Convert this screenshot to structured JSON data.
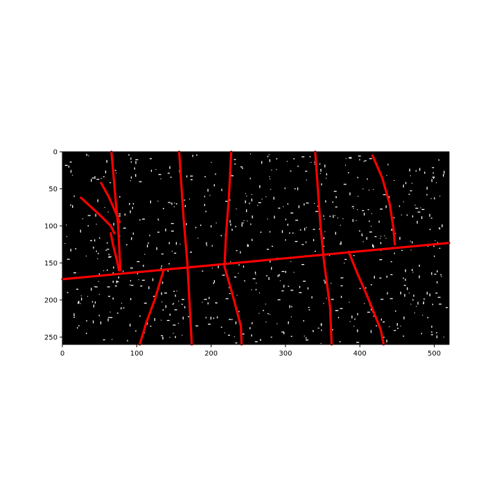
{
  "chart_data": {
    "type": "image",
    "title": "",
    "xlabel": "",
    "ylabel": "",
    "xlim": [
      0,
      520
    ],
    "ylim": [
      260,
      0
    ],
    "x_ticks": [
      0,
      100,
      200,
      300,
      400,
      500
    ],
    "y_ticks": [
      0,
      50,
      100,
      150,
      200,
      250
    ],
    "x_tick_labels": [
      "0",
      "100",
      "200",
      "300",
      "400",
      "500"
    ],
    "y_tick_labels": [
      "0",
      "50",
      "100",
      "150",
      "200",
      "250"
    ],
    "background_color": "#000000",
    "edge_color": "#ffffff",
    "line_color": "#ff0000",
    "line_segments": [
      {
        "name": "horizontal-line",
        "points": [
          [
            0,
            172
          ],
          [
            520,
            123
          ]
        ]
      },
      {
        "name": "vertical-1",
        "points": [
          [
            66,
            0
          ],
          [
            72,
            70
          ],
          [
            75,
            100
          ],
          [
            78,
            160
          ]
        ]
      },
      {
        "name": "vertical-2",
        "points": [
          [
            157,
            0
          ],
          [
            163,
            90
          ],
          [
            168,
            150
          ],
          [
            174,
            260
          ]
        ]
      },
      {
        "name": "vertical-3",
        "points": [
          [
            227,
            0
          ],
          [
            224,
            60
          ],
          [
            220,
            112
          ],
          [
            218,
            155
          ],
          [
            228,
            190
          ],
          [
            240,
            235
          ],
          [
            241,
            260
          ]
        ]
      },
      {
        "name": "vertical-4",
        "points": [
          [
            340,
            0
          ],
          [
            347,
            100
          ],
          [
            352,
            150
          ],
          [
            360,
            210
          ],
          [
            362,
            260
          ]
        ]
      },
      {
        "name": "diagonal-top-right",
        "points": [
          [
            417,
            5
          ],
          [
            430,
            35
          ],
          [
            440,
            70
          ],
          [
            445,
            102
          ],
          [
            447,
            125
          ]
        ]
      },
      {
        "name": "diagonal-bottom-right",
        "points": [
          [
            385,
            135
          ],
          [
            397,
            165
          ],
          [
            410,
            195
          ],
          [
            428,
            240
          ],
          [
            432,
            260
          ]
        ]
      },
      {
        "name": "diagonal-bottom-left",
        "points": [
          [
            104,
            260
          ],
          [
            113,
            230
          ],
          [
            124,
            200
          ],
          [
            133,
            170
          ],
          [
            136,
            160
          ]
        ]
      },
      {
        "name": "branch-a",
        "points": [
          [
            25,
            62
          ],
          [
            50,
            85
          ],
          [
            65,
            100
          ],
          [
            70,
            110
          ]
        ]
      },
      {
        "name": "branch-b",
        "points": [
          [
            52,
            42
          ],
          [
            62,
            60
          ],
          [
            70,
            78
          ],
          [
            77,
            95
          ]
        ]
      },
      {
        "name": "branch-c",
        "points": [
          [
            65,
            110
          ],
          [
            68,
            125
          ],
          [
            73,
            145
          ],
          [
            76,
            160
          ]
        ]
      }
    ]
  }
}
